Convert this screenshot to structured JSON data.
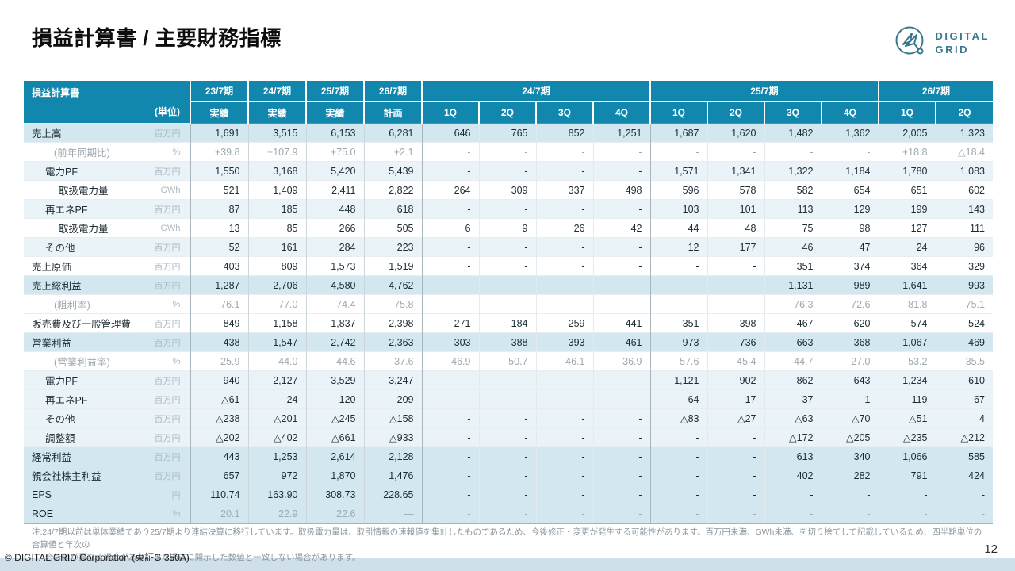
{
  "slide": {
    "title": "損益計算書 / 主要財務指標",
    "page_number": "12",
    "copyright": "© DIGITAL GRID Corporation (東証G 350A)",
    "logo": {
      "line1": "DIGITAL",
      "line2": "GRID"
    },
    "note": {
      "prefix": "注:",
      "line1": "24/7期以前は単体業績であり25/7期より連結決算に移行しています。取扱電力量は、取引情報の速報値を集計したものであるため、今後修正・変更が発生する可能性があります。百万円未満、GWh未満、を切り捨てして記載しているため、四半期単位の合算値と年次の",
      "line2": "合計値が異なる場合があり、また過去に開示した数値と一致しない場合があります。"
    }
  },
  "colors": {
    "header_teal": "#1287ad",
    "row_emphasis": "#d2e7f0",
    "row_light": "#e9f3f8",
    "muted_text": "#9da9b1",
    "logo_teal": "#39798d",
    "bottom_strip": "#cfe0eb"
  },
  "table": {
    "corner_title": "損益計算書",
    "unit_label": "(単位)",
    "annual_columns": [
      {
        "period": "23/7期",
        "sub": "実績"
      },
      {
        "period": "24/7期",
        "sub": "実績"
      },
      {
        "period": "25/7期",
        "sub": "実績"
      },
      {
        "period": "26/7期",
        "sub": "計画"
      }
    ],
    "quarter_groups": [
      {
        "period": "24/7期",
        "quarters": [
          "1Q",
          "2Q",
          "3Q",
          "4Q"
        ]
      },
      {
        "period": "25/7期",
        "quarters": [
          "1Q",
          "2Q",
          "3Q",
          "4Q"
        ]
      },
      {
        "period": "26/7期",
        "quarters": [
          "1Q",
          "2Q"
        ]
      }
    ],
    "rows": [
      {
        "label": "売上高",
        "indent": 0,
        "unit": "百万円",
        "bg": "emphasis",
        "label_muted": false,
        "vals_muted": false,
        "values": [
          "1,691",
          "3,515",
          "6,153",
          "6,281",
          "646",
          "765",
          "852",
          "1,251",
          "1,687",
          "1,620",
          "1,482",
          "1,362",
          "2,005",
          "1,323"
        ]
      },
      {
        "label": "(前年同期比)",
        "indent": 3,
        "unit": "%",
        "bg": "white",
        "label_muted": true,
        "vals_muted": true,
        "values": [
          "+39.8",
          "+107.9",
          "+75.0",
          "+2.1",
          "-",
          "-",
          "-",
          "-",
          "-",
          "-",
          "-",
          "-",
          "+18.8",
          "△18.4"
        ]
      },
      {
        "label": "電力PF",
        "indent": 1,
        "unit": "百万円",
        "bg": "light",
        "label_muted": false,
        "vals_muted": false,
        "values": [
          "1,550",
          "3,168",
          "5,420",
          "5,439",
          "-",
          "-",
          "-",
          "-",
          "1,571",
          "1,341",
          "1,322",
          "1,184",
          "1,780",
          "1,083"
        ]
      },
      {
        "label": "取扱電力量",
        "indent": 2,
        "unit": "GWh",
        "bg": "white",
        "label_muted": false,
        "vals_muted": false,
        "values": [
          "521",
          "1,409",
          "2,411",
          "2,822",
          "264",
          "309",
          "337",
          "498",
          "596",
          "578",
          "582",
          "654",
          "651",
          "602"
        ]
      },
      {
        "label": "再エネPF",
        "indent": 1,
        "unit": "百万円",
        "bg": "light",
        "label_muted": false,
        "vals_muted": false,
        "values": [
          "87",
          "185",
          "448",
          "618",
          "-",
          "-",
          "-",
          "-",
          "103",
          "101",
          "113",
          "129",
          "199",
          "143"
        ]
      },
      {
        "label": "取扱電力量",
        "indent": 2,
        "unit": "GWh",
        "bg": "white",
        "label_muted": false,
        "vals_muted": false,
        "values": [
          "13",
          "85",
          "266",
          "505",
          "6",
          "9",
          "26",
          "42",
          "44",
          "48",
          "75",
          "98",
          "127",
          "111"
        ]
      },
      {
        "label": "その他",
        "indent": 1,
        "unit": "百万円",
        "bg": "light",
        "label_muted": false,
        "vals_muted": false,
        "values": [
          "52",
          "161",
          "284",
          "223",
          "-",
          "-",
          "-",
          "-",
          "12",
          "177",
          "46",
          "47",
          "24",
          "96"
        ]
      },
      {
        "label": "売上原価",
        "indent": 0,
        "unit": "百万円",
        "bg": "white",
        "label_muted": false,
        "vals_muted": false,
        "values": [
          "403",
          "809",
          "1,573",
          "1,519",
          "-",
          "-",
          "-",
          "-",
          "-",
          "-",
          "351",
          "374",
          "364",
          "329"
        ]
      },
      {
        "label": "売上総利益",
        "indent": 0,
        "unit": "百万円",
        "bg": "emphasis",
        "label_muted": false,
        "vals_muted": false,
        "values": [
          "1,287",
          "2,706",
          "4,580",
          "4,762",
          "-",
          "-",
          "-",
          "-",
          "-",
          "-",
          "1,131",
          "989",
          "1,641",
          "993"
        ]
      },
      {
        "label": "(粗利率)",
        "indent": 3,
        "unit": "%",
        "bg": "white",
        "label_muted": true,
        "vals_muted": true,
        "values": [
          "76.1",
          "77.0",
          "74.4",
          "75.8",
          "-",
          "-",
          "-",
          "-",
          "-",
          "-",
          "76.3",
          "72.6",
          "81.8",
          "75.1"
        ]
      },
      {
        "label": "販売費及び一般管理費",
        "indent": 0,
        "unit": "百万円",
        "bg": "white",
        "label_muted": false,
        "vals_muted": false,
        "values": [
          "849",
          "1,158",
          "1,837",
          "2,398",
          "271",
          "184",
          "259",
          "441",
          "351",
          "398",
          "467",
          "620",
          "574",
          "524"
        ]
      },
      {
        "label": "営業利益",
        "indent": 0,
        "unit": "百万円",
        "bg": "emphasis",
        "label_muted": false,
        "vals_muted": false,
        "values": [
          "438",
          "1,547",
          "2,742",
          "2,363",
          "303",
          "388",
          "393",
          "461",
          "973",
          "736",
          "663",
          "368",
          "1,067",
          "469"
        ]
      },
      {
        "label": "(営業利益率)",
        "indent": 3,
        "unit": "%",
        "bg": "white",
        "label_muted": true,
        "vals_muted": true,
        "values": [
          "25.9",
          "44.0",
          "44.6",
          "37.6",
          "46.9",
          "50.7",
          "46.1",
          "36.9",
          "57.6",
          "45.4",
          "44.7",
          "27.0",
          "53.2",
          "35.5"
        ]
      },
      {
        "label": "電力PF",
        "indent": 1,
        "unit": "百万円",
        "bg": "light",
        "label_muted": false,
        "vals_muted": false,
        "values": [
          "940",
          "2,127",
          "3,529",
          "3,247",
          "-",
          "-",
          "-",
          "-",
          "1,121",
          "902",
          "862",
          "643",
          "1,234",
          "610"
        ]
      },
      {
        "label": "再エネPF",
        "indent": 1,
        "unit": "百万円",
        "bg": "light",
        "label_muted": false,
        "vals_muted": false,
        "values": [
          "△61",
          "24",
          "120",
          "209",
          "-",
          "-",
          "-",
          "-",
          "64",
          "17",
          "37",
          "1",
          "119",
          "67"
        ]
      },
      {
        "label": "その他",
        "indent": 1,
        "unit": "百万円",
        "bg": "light",
        "label_muted": false,
        "vals_muted": false,
        "values": [
          "△238",
          "△201",
          "△245",
          "△158",
          "-",
          "-",
          "-",
          "-",
          "△83",
          "△27",
          "△63",
          "△70",
          "△51",
          "4"
        ]
      },
      {
        "label": "調整額",
        "indent": 1,
        "unit": "百万円",
        "bg": "light",
        "label_muted": false,
        "vals_muted": false,
        "values": [
          "△202",
          "△402",
          "△661",
          "△933",
          "-",
          "-",
          "-",
          "-",
          "-",
          "-",
          "△172",
          "△205",
          "△235",
          "△212"
        ]
      },
      {
        "label": "経常利益",
        "indent": 0,
        "unit": "百万円",
        "bg": "emphasis",
        "label_muted": false,
        "vals_muted": false,
        "values": [
          "443",
          "1,253",
          "2,614",
          "2,128",
          "-",
          "-",
          "-",
          "-",
          "-",
          "-",
          "613",
          "340",
          "1,066",
          "585"
        ]
      },
      {
        "label": "親会社株主利益",
        "indent": 0,
        "unit": "百万円",
        "bg": "emphasis",
        "label_muted": false,
        "vals_muted": false,
        "values": [
          "657",
          "972",
          "1,870",
          "1,476",
          "-",
          "-",
          "-",
          "-",
          "-",
          "-",
          "402",
          "282",
          "791",
          "424"
        ]
      },
      {
        "label": "EPS",
        "indent": 0,
        "unit": "円",
        "bg": "emphasis",
        "label_muted": false,
        "vals_muted": false,
        "values": [
          "110.74",
          "163.90",
          "308.73",
          "228.65",
          "-",
          "-",
          "-",
          "-",
          "-",
          "-",
          "-",
          "-",
          "-",
          "-"
        ]
      },
      {
        "label": "ROE",
        "indent": 0,
        "unit": "%",
        "bg": "emphasis",
        "label_muted": false,
        "vals_muted": true,
        "values": [
          "20.1",
          "22.9",
          "22.6",
          "―",
          "-",
          "-",
          "-",
          "-",
          "-",
          "-",
          "-",
          "-",
          "-",
          "-"
        ]
      }
    ]
  }
}
